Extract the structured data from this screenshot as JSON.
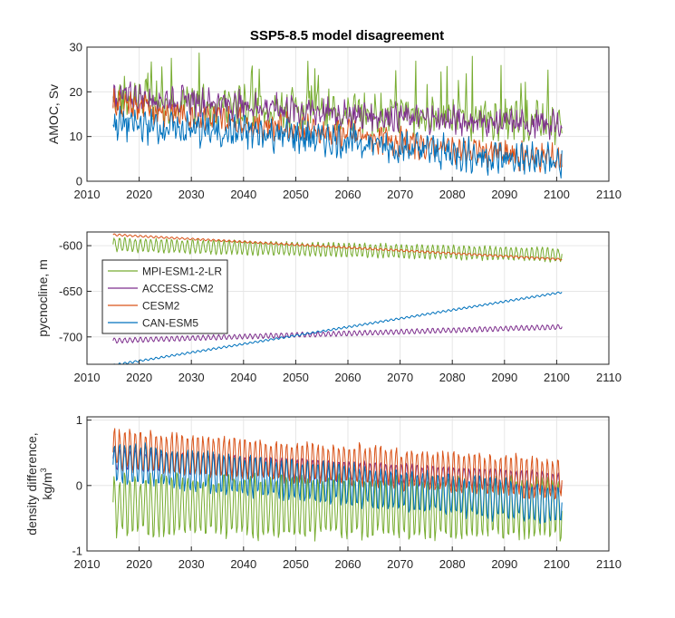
{
  "figure": {
    "title": "SSP5-8.5 model disagreement"
  },
  "colors": {
    "MPI-ESM1-2-LR": "#77AC30",
    "ACCESS-CM2": "#7E2F8E",
    "CESM2": "#D95319",
    "CAN-ESM5": "#0072BD",
    "grid": "#e6e6e6",
    "axis": "#262626"
  },
  "chart_data": [
    {
      "type": "line",
      "title": "SSP5-8.5 model disagreement",
      "xlabel": "",
      "ylabel": "AMOC, Sv",
      "xlim": [
        2010,
        2110
      ],
      "ylim": [
        0,
        30
      ],
      "x_ticks": [
        2010,
        2020,
        2030,
        2040,
        2050,
        2060,
        2070,
        2080,
        2090,
        2100,
        2110
      ],
      "y_ticks": [
        0,
        10,
        20,
        30
      ],
      "grid": true,
      "x_range": [
        2015,
        2101
      ],
      "series": [
        {
          "name": "MPI-ESM1-2-LR",
          "x": [
            2015,
            2030,
            2045,
            2060,
            2075,
            2090,
            2101
          ],
          "trend": [
            19,
            17.5,
            16.5,
            15.5,
            14.5,
            13.5,
            13
          ],
          "amplitude": 3.5,
          "spike_max": 29
        },
        {
          "name": "ACCESS-CM2",
          "x": [
            2015,
            2030,
            2045,
            2060,
            2075,
            2090,
            2101
          ],
          "trend": [
            19,
            18,
            16.5,
            15,
            14,
            13,
            12.5
          ],
          "amplitude": 2.5
        },
        {
          "name": "CESM2",
          "x": [
            2015,
            2030,
            2045,
            2060,
            2075,
            2090,
            2101
          ],
          "trend": [
            17.5,
            14.5,
            12.5,
            10.5,
            8,
            6,
            5
          ],
          "amplitude": 2.5
        },
        {
          "name": "CAN-ESM5",
          "x": [
            2015,
            2030,
            2045,
            2060,
            2075,
            2090,
            2101
          ],
          "trend": [
            13,
            11.5,
            10.5,
            9,
            7,
            5,
            4.5
          ],
          "amplitude": 3
        }
      ]
    },
    {
      "type": "line",
      "xlabel": "",
      "ylabel": "pycnocline, m",
      "xlim": [
        2010,
        2110
      ],
      "ylim": [
        -730,
        -585
      ],
      "x_ticks": [
        2010,
        2020,
        2030,
        2040,
        2050,
        2060,
        2070,
        2080,
        2090,
        2100,
        2110
      ],
      "y_ticks": [
        -700,
        -650,
        -600
      ],
      "grid": true,
      "legend": {
        "placement": "left",
        "entries": [
          "MPI-ESM1-2-LR",
          "ACCESS-CM2",
          "CESM2",
          "CAN-ESM5"
        ]
      },
      "series": [
        {
          "name": "MPI-ESM1-2-LR",
          "x": [
            2015,
            2101
          ],
          "y": [
            -599,
            -610
          ],
          "amplitude": 7
        },
        {
          "name": "ACCESS-CM2",
          "x": [
            2015,
            2101
          ],
          "y": [
            -704,
            -689
          ],
          "amplitude": 2.5
        },
        {
          "name": "CESM2",
          "x": [
            2015,
            2101
          ],
          "y": [
            -588,
            -615
          ],
          "amplitude": 1
        },
        {
          "name": "CAN-ESM5",
          "x": [
            2015,
            2101
          ],
          "y": [
            -731,
            -651
          ],
          "amplitude": 1
        }
      ]
    },
    {
      "type": "line",
      "xlabel": "",
      "ylabel_lines": [
        "density difference,",
        "kg/m"
      ],
      "ylabel_superscript": "3",
      "xlim": [
        2010,
        2110
      ],
      "ylim": [
        -1,
        1.05
      ],
      "x_ticks": [
        2010,
        2020,
        2030,
        2040,
        2050,
        2060,
        2070,
        2080,
        2090,
        2100,
        2110
      ],
      "y_ticks": [
        -1,
        0,
        1
      ],
      "grid": true,
      "series": [
        {
          "name": "MPI-ESM1-2-LR",
          "x": [
            2015,
            2101
          ],
          "y": [
            -0.3,
            -0.35
          ],
          "amplitude": 0.45
        },
        {
          "name": "ACCESS-CM2",
          "x": [
            2015,
            2101
          ],
          "y": [
            0.4,
            0.05
          ],
          "amplitude": 0.15
        },
        {
          "name": "CESM2",
          "x": [
            2015,
            2101
          ],
          "y": [
            0.55,
            0.1
          ],
          "amplitude": 0.3
        },
        {
          "name": "CAN-ESM5",
          "x": [
            2015,
            2101
          ],
          "y": [
            0.35,
            -0.3
          ],
          "amplitude": 0.3
        }
      ]
    }
  ]
}
